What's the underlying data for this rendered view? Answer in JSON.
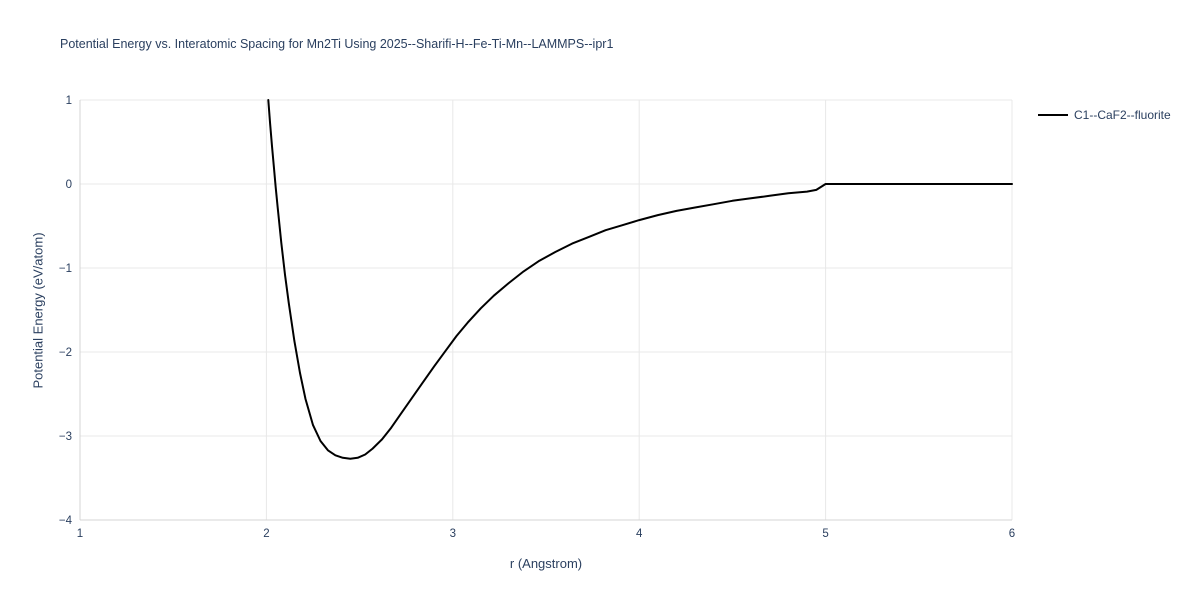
{
  "colors": {
    "background": "#ffffff",
    "grid": "#e8e8e8",
    "axis_line": "#d4d4d4",
    "tick_text": "#2a3f5f",
    "label_text": "#2a3f5f",
    "title_text": "#2a3f5f",
    "line": "#000000"
  },
  "legend": {
    "label": "C1--CaF2--fluorite",
    "line_color": "#000000"
  },
  "chart_data": {
    "type": "line",
    "title": "Potential Energy vs. Interatomic Spacing for Mn2Ti Using 2025--Sharifi-H--Fe-Ti-Mn--LAMMPS--ipr1",
    "xlabel": "r (Angstrom)",
    "ylabel": "Potential Energy (eV/atom)",
    "xlim": [
      1,
      6
    ],
    "ylim": [
      -4,
      1
    ],
    "x_ticks": [
      1,
      2,
      3,
      4,
      5,
      6
    ],
    "x_tick_labels": [
      "1",
      "2",
      "3",
      "4",
      "5",
      "6"
    ],
    "y_ticks": [
      -4,
      -3,
      -2,
      -1,
      0,
      1
    ],
    "y_tick_labels": [
      "−4",
      "−3",
      "−2",
      "−1",
      "0",
      "1"
    ],
    "grid": true,
    "legend_position": "top-right",
    "series": [
      {
        "name": "C1--CaF2--fluorite",
        "color": "#000000",
        "points": [
          [
            2.01,
            1.0
          ],
          [
            2.02,
            0.72
          ],
          [
            2.03,
            0.45
          ],
          [
            2.04,
            0.2
          ],
          [
            2.05,
            -0.04
          ],
          [
            2.06,
            -0.27
          ],
          [
            2.08,
            -0.7
          ],
          [
            2.1,
            -1.08
          ],
          [
            2.12,
            -1.42
          ],
          [
            2.15,
            -1.87
          ],
          [
            2.18,
            -2.25
          ],
          [
            2.21,
            -2.56
          ],
          [
            2.25,
            -2.87
          ],
          [
            2.29,
            -3.06
          ],
          [
            2.33,
            -3.17
          ],
          [
            2.37,
            -3.23
          ],
          [
            2.41,
            -3.26
          ],
          [
            2.45,
            -3.27
          ],
          [
            2.49,
            -3.26
          ],
          [
            2.53,
            -3.22
          ],
          [
            2.57,
            -3.15
          ],
          [
            2.62,
            -3.04
          ],
          [
            2.67,
            -2.9
          ],
          [
            2.72,
            -2.74
          ],
          [
            2.78,
            -2.55
          ],
          [
            2.84,
            -2.36
          ],
          [
            2.9,
            -2.17
          ],
          [
            2.96,
            -1.99
          ],
          [
            3.02,
            -1.81
          ],
          [
            3.08,
            -1.65
          ],
          [
            3.15,
            -1.48
          ],
          [
            3.22,
            -1.33
          ],
          [
            3.3,
            -1.18
          ],
          [
            3.38,
            -1.04
          ],
          [
            3.46,
            -0.92
          ],
          [
            3.55,
            -0.81
          ],
          [
            3.64,
            -0.71
          ],
          [
            3.73,
            -0.63
          ],
          [
            3.82,
            -0.55
          ],
          [
            3.91,
            -0.49
          ],
          [
            4.0,
            -0.43
          ],
          [
            4.1,
            -0.37
          ],
          [
            4.2,
            -0.32
          ],
          [
            4.3,
            -0.28
          ],
          [
            4.4,
            -0.24
          ],
          [
            4.5,
            -0.2
          ],
          [
            4.6,
            -0.17
          ],
          [
            4.7,
            -0.14
          ],
          [
            4.8,
            -0.11
          ],
          [
            4.9,
            -0.09
          ],
          [
            4.95,
            -0.07
          ],
          [
            5.0,
            0.0
          ],
          [
            5.2,
            0.0
          ],
          [
            5.5,
            0.0
          ],
          [
            6.0,
            0.0
          ]
        ]
      }
    ]
  }
}
